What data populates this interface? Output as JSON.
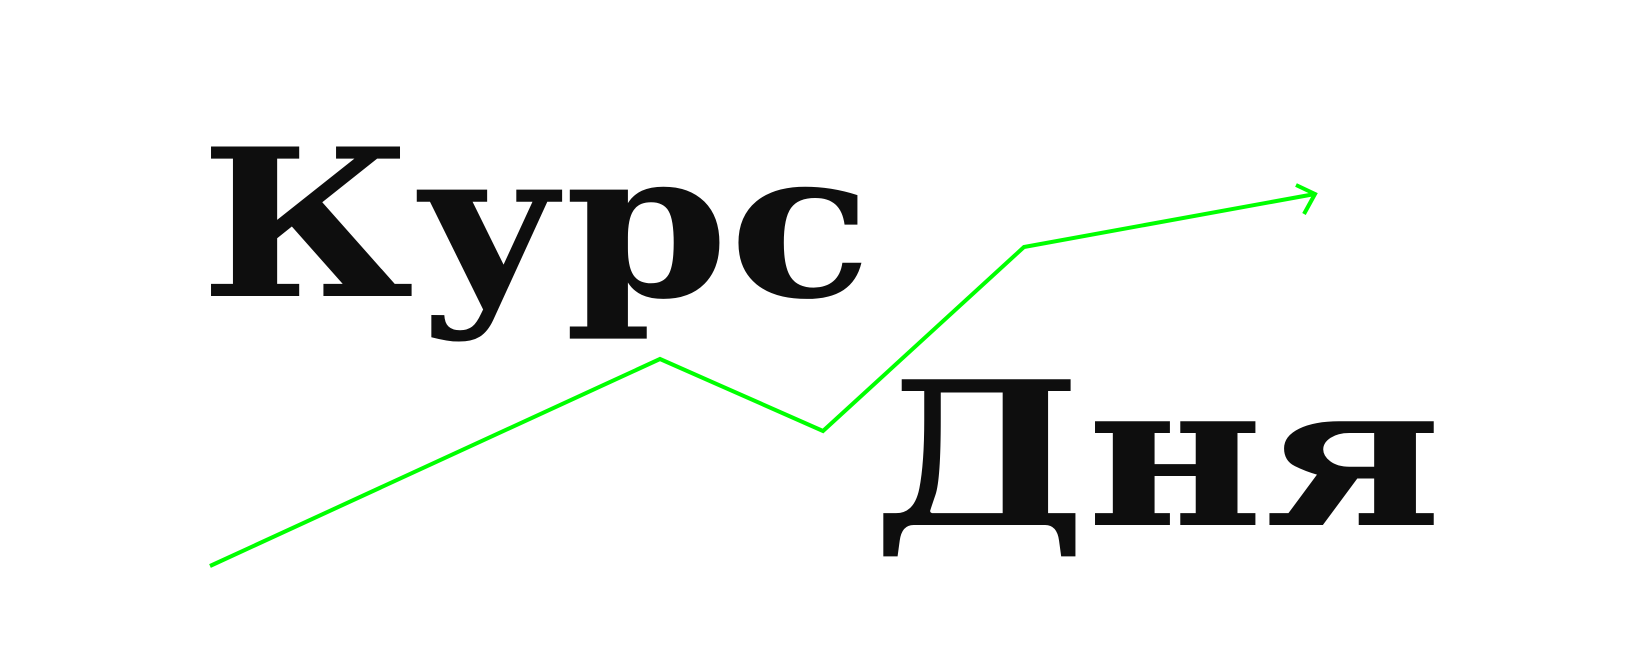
{
  "logo": {
    "line1": "Курс",
    "line2": "Дня",
    "text_color": "#0e0e0e",
    "line_color": "#00ff00",
    "background": "#ffffff"
  }
}
